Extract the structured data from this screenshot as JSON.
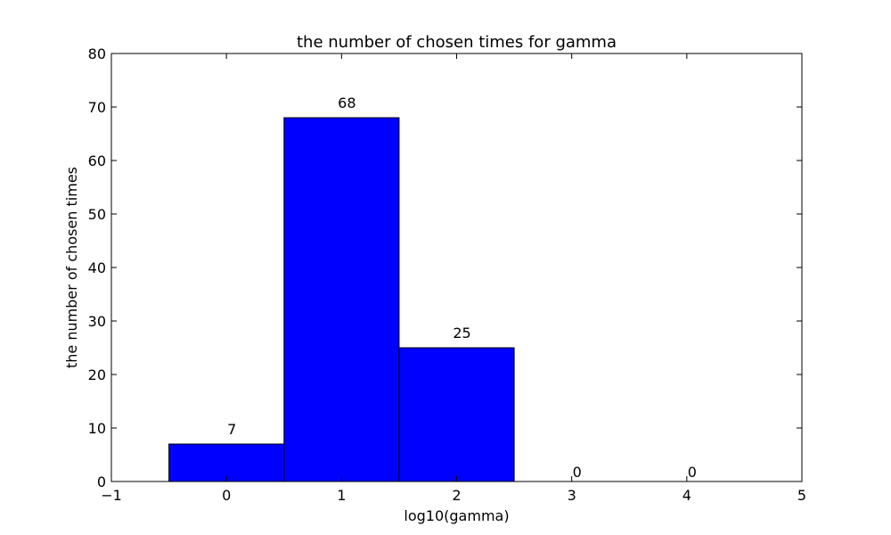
{
  "chart_data": {
    "type": "bar",
    "title": "the number of chosen times for gamma",
    "xlabel": "log10(gamma)",
    "ylabel": "the number of chosen times",
    "categories": [
      0,
      1,
      2,
      3,
      4
    ],
    "values": [
      7,
      68,
      25,
      0,
      0
    ],
    "data_labels": [
      "7",
      "68",
      "25",
      "0",
      "0"
    ],
    "bar_width": 1,
    "xlim": [
      -1,
      5
    ],
    "ylim": [
      0,
      80
    ],
    "xticks": [
      -1,
      0,
      1,
      2,
      3,
      4,
      5
    ],
    "xtick_labels": [
      "−1",
      "0",
      "1",
      "2",
      "3",
      "4",
      "5"
    ],
    "yticks": [
      0,
      10,
      20,
      30,
      40,
      50,
      60,
      70,
      80
    ],
    "ytick_labels": [
      "0",
      "10",
      "20",
      "30",
      "40",
      "50",
      "60",
      "70",
      "80"
    ],
    "grid": false,
    "legend": "none",
    "bar_color": "#0000ff",
    "edge_color": "#000000"
  }
}
